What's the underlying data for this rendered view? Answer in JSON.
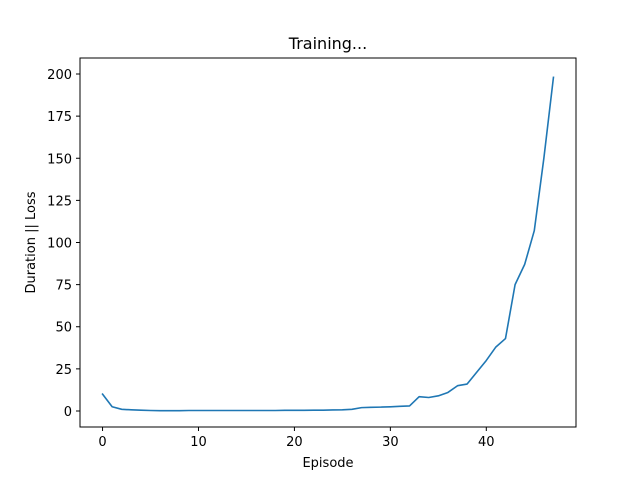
{
  "chart_data": {
    "type": "line",
    "title": "Training...",
    "xlabel": "Episode",
    "ylabel": "Duration || Loss",
    "xlim": [
      -2.35,
      49.35
    ],
    "ylim": [
      -9.5,
      209.5
    ],
    "xticks": [
      0,
      10,
      20,
      30,
      40
    ],
    "yticks": [
      0,
      25,
      50,
      75,
      100,
      125,
      150,
      175,
      200
    ],
    "grid": false,
    "series": [
      {
        "color": "#1f77b4",
        "x": [
          0,
          1,
          2,
          3,
          4,
          5,
          6,
          7,
          8,
          9,
          10,
          11,
          12,
          13,
          14,
          15,
          16,
          17,
          18,
          19,
          20,
          21,
          22,
          23,
          24,
          25,
          26,
          27,
          28,
          29,
          30,
          31,
          32,
          33,
          34,
          35,
          36,
          37,
          38,
          39,
          40,
          41,
          42,
          43,
          44,
          45,
          46,
          47
        ],
        "y": [
          10,
          2.5,
          1,
          0.7,
          0.5,
          0.3,
          0.2,
          0.2,
          0.2,
          0.3,
          0.3,
          0.3,
          0.3,
          0.3,
          0.3,
          0.3,
          0.3,
          0.3,
          0.3,
          0.4,
          0.4,
          0.4,
          0.5,
          0.5,
          0.6,
          0.7,
          1,
          2,
          2.2,
          2.3,
          2.5,
          2.8,
          3,
          8.5,
          8,
          9,
          11,
          15,
          16,
          23,
          30,
          38,
          43,
          75,
          87,
          107,
          150,
          198
        ]
      }
    ]
  }
}
